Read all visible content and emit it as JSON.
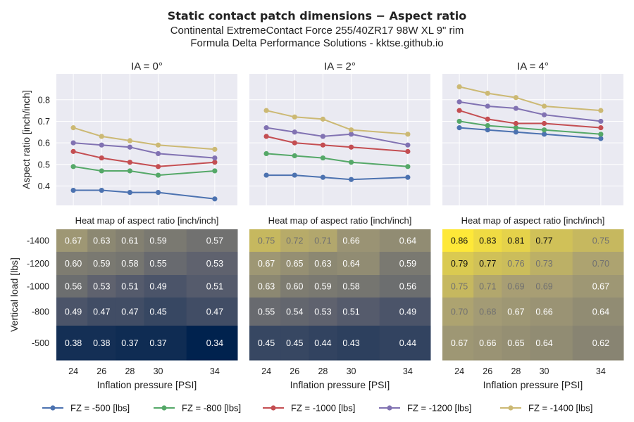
{
  "title": "Static contact patch dimensions  −  Aspect ratio",
  "subtitle_line1": "Continental ExtremeContact Force 255/40ZR17 98W XL 9\" rim",
  "subtitle_line2": "Formula Delta Performance Solutions - kktse.github.io",
  "chart_data": [
    {
      "type": "line",
      "title": "IA = 0°",
      "ylabel": "Aspect ratio [inch/inch]",
      "x": [
        24,
        26,
        28,
        30,
        34
      ],
      "ylim": [
        0.31,
        0.92
      ],
      "yticks": [
        0.4,
        0.5,
        0.6,
        0.7,
        0.8
      ],
      "grid": true,
      "series": [
        {
          "name": "FZ = -500 [lbs]",
          "values": [
            0.38,
            0.38,
            0.37,
            0.37,
            0.34
          ]
        },
        {
          "name": "FZ = -800 [lbs]",
          "values": [
            0.49,
            0.47,
            0.47,
            0.45,
            0.47
          ]
        },
        {
          "name": "FZ = -1000 [lbs]",
          "values": [
            0.56,
            0.53,
            0.51,
            0.49,
            0.51
          ]
        },
        {
          "name": "FZ = -1200 [lbs]",
          "values": [
            0.6,
            0.59,
            0.58,
            0.55,
            0.53
          ]
        },
        {
          "name": "FZ = -1400 [lbs]",
          "values": [
            0.67,
            0.63,
            0.61,
            0.59,
            0.57
          ]
        }
      ]
    },
    {
      "type": "line",
      "title": "IA = 2°",
      "x": [
        24,
        26,
        28,
        30,
        34
      ],
      "ylim": [
        0.31,
        0.92
      ],
      "grid": true,
      "series": [
        {
          "name": "FZ = -500 [lbs]",
          "values": [
            0.45,
            0.45,
            0.44,
            0.43,
            0.44
          ]
        },
        {
          "name": "FZ = -800 [lbs]",
          "values": [
            0.55,
            0.54,
            0.53,
            0.51,
            0.49
          ]
        },
        {
          "name": "FZ = -1000 [lbs]",
          "values": [
            0.63,
            0.6,
            0.59,
            0.58,
            0.56
          ]
        },
        {
          "name": "FZ = -1200 [lbs]",
          "values": [
            0.67,
            0.65,
            0.63,
            0.64,
            0.59
          ]
        },
        {
          "name": "FZ = -1400 [lbs]",
          "values": [
            0.75,
            0.72,
            0.71,
            0.66,
            0.64
          ]
        }
      ]
    },
    {
      "type": "line",
      "title": "IA = 4°",
      "x": [
        24,
        26,
        28,
        30,
        34
      ],
      "ylim": [
        0.31,
        0.92
      ],
      "grid": true,
      "series": [
        {
          "name": "FZ = -500 [lbs]",
          "values": [
            0.67,
            0.66,
            0.65,
            0.64,
            0.62
          ]
        },
        {
          "name": "FZ = -800 [lbs]",
          "values": [
            0.7,
            0.68,
            0.67,
            0.66,
            0.64
          ]
        },
        {
          "name": "FZ = -1000 [lbs]",
          "values": [
            0.75,
            0.71,
            0.69,
            0.69,
            0.67
          ]
        },
        {
          "name": "FZ = -1200 [lbs]",
          "values": [
            0.79,
            0.77,
            0.76,
            0.73,
            0.7
          ]
        },
        {
          "name": "FZ = -1400 [lbs]",
          "values": [
            0.86,
            0.83,
            0.81,
            0.77,
            0.75
          ]
        }
      ]
    },
    {
      "type": "heatmap",
      "title": "Heat map of aspect ratio [inch/inch]",
      "xlabel": "Inflation pressure [PSI]",
      "ylabel": "Vertical load [lbs]",
      "x": [
        24,
        26,
        28,
        30,
        34
      ],
      "y": [
        -1400,
        -1200,
        -1000,
        -800,
        -500
      ],
      "values": [
        [
          0.67,
          0.63,
          0.61,
          0.59,
          0.57
        ],
        [
          0.6,
          0.59,
          0.58,
          0.55,
          0.53
        ],
        [
          0.56,
          0.53,
          0.51,
          0.49,
          0.51
        ],
        [
          0.49,
          0.47,
          0.47,
          0.45,
          0.47
        ],
        [
          0.38,
          0.38,
          0.37,
          0.37,
          0.34
        ]
      ]
    },
    {
      "type": "heatmap",
      "title": "Heat map of aspect ratio [inch/inch]",
      "xlabel": "Inflation pressure [PSI]",
      "x": [
        24,
        26,
        28,
        30,
        34
      ],
      "y": [
        -1400,
        -1200,
        -1000,
        -800,
        -500
      ],
      "values": [
        [
          0.75,
          0.72,
          0.71,
          0.66,
          0.64
        ],
        [
          0.67,
          0.65,
          0.63,
          0.64,
          0.59
        ],
        [
          0.63,
          0.6,
          0.59,
          0.58,
          0.56
        ],
        [
          0.55,
          0.54,
          0.53,
          0.51,
          0.49
        ],
        [
          0.45,
          0.45,
          0.44,
          0.43,
          0.44
        ]
      ]
    },
    {
      "type": "heatmap",
      "title": "Heat map of aspect ratio [inch/inch]",
      "xlabel": "Inflation pressure [PSI]",
      "x": [
        24,
        26,
        28,
        30,
        34
      ],
      "y": [
        -1400,
        -1200,
        -1000,
        -800,
        -500
      ],
      "values": [
        [
          0.86,
          0.83,
          0.81,
          0.77,
          0.75
        ],
        [
          0.79,
          0.77,
          0.76,
          0.73,
          0.7
        ],
        [
          0.75,
          0.71,
          0.69,
          0.69,
          0.67
        ],
        [
          0.7,
          0.68,
          0.67,
          0.66,
          0.64
        ],
        [
          0.67,
          0.66,
          0.65,
          0.64,
          0.62
        ]
      ]
    }
  ],
  "colors": {
    "series": [
      "#4c72b0",
      "#55a868",
      "#c44e52",
      "#8172b2",
      "#ccb974"
    ],
    "panel_bg": "#eaeaf2",
    "colormap": [
      "#00224e",
      "#575c6d",
      "#a69d75",
      "#fee838"
    ],
    "color_range": [
      0.34,
      0.86
    ]
  }
}
